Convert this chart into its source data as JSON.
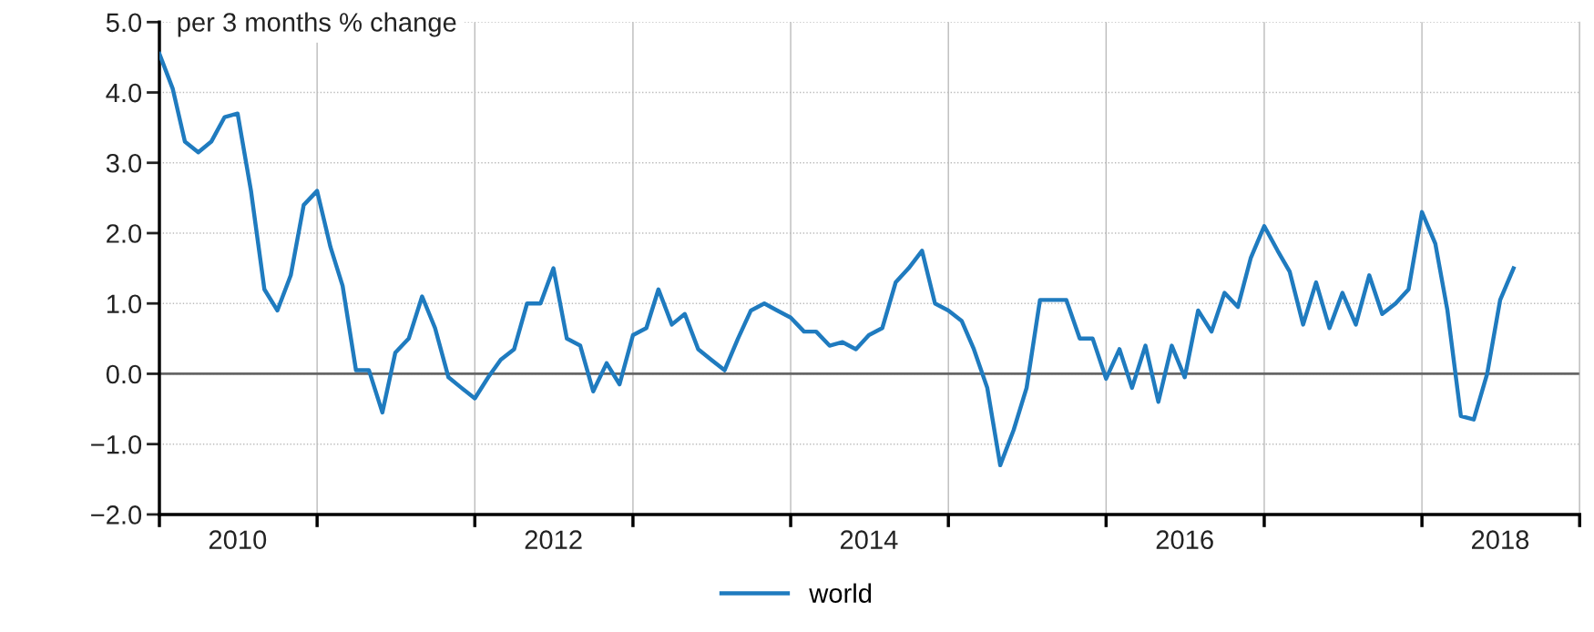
{
  "chart_data": {
    "type": "line",
    "ylabel": "per 3 months % change",
    "x": [
      "2010-01",
      "2010-02",
      "2010-03",
      "2010-04",
      "2010-05",
      "2010-06",
      "2010-07",
      "2010-08",
      "2010-09",
      "2010-10",
      "2010-11",
      "2010-12",
      "2011-01",
      "2011-02",
      "2011-03",
      "2011-04",
      "2011-05",
      "2011-06",
      "2011-07",
      "2011-08",
      "2011-09",
      "2011-10",
      "2011-11",
      "2011-12",
      "2012-01",
      "2012-02",
      "2012-03",
      "2012-04",
      "2012-05",
      "2012-06",
      "2012-07",
      "2012-08",
      "2012-09",
      "2012-10",
      "2012-11",
      "2012-12",
      "2013-01",
      "2013-02",
      "2013-03",
      "2013-04",
      "2013-05",
      "2013-06",
      "2013-07",
      "2013-08",
      "2013-09",
      "2013-10",
      "2013-11",
      "2013-12",
      "2014-01",
      "2014-02",
      "2014-03",
      "2014-04",
      "2014-05",
      "2014-06",
      "2014-07",
      "2014-08",
      "2014-09",
      "2014-10",
      "2014-11",
      "2014-12",
      "2015-01",
      "2015-02",
      "2015-03",
      "2015-04",
      "2015-05",
      "2015-06",
      "2015-07",
      "2015-08",
      "2015-09",
      "2015-10",
      "2015-11",
      "2015-12",
      "2016-01",
      "2016-02",
      "2016-03",
      "2016-04",
      "2016-05",
      "2016-06",
      "2016-07",
      "2016-08",
      "2016-09",
      "2016-10",
      "2016-11",
      "2016-12",
      "2017-01",
      "2017-02",
      "2017-03",
      "2017-04",
      "2017-05",
      "2017-06",
      "2017-07",
      "2017-08",
      "2017-09",
      "2017-10",
      "2017-11",
      "2017-12",
      "2018-01",
      "2018-02",
      "2018-03",
      "2018-04",
      "2018-05",
      "2018-06",
      "2018-07",
      "2018-08"
    ],
    "series": [
      {
        "name": "world",
        "color": "#1f7bbf",
        "values": [
          4.55,
          4.05,
          3.3,
          3.15,
          3.3,
          3.65,
          3.7,
          2.6,
          1.2,
          0.9,
          1.4,
          2.4,
          2.6,
          1.8,
          1.25,
          0.05,
          0.05,
          -0.55,
          0.3,
          0.5,
          1.1,
          0.65,
          -0.05,
          -0.2,
          -0.35,
          -0.05,
          0.2,
          0.35,
          1.0,
          1.0,
          1.5,
          0.5,
          0.4,
          -0.25,
          0.15,
          -0.15,
          0.55,
          0.65,
          1.2,
          0.7,
          0.85,
          0.35,
          0.2,
          0.05,
          0.5,
          0.9,
          1.0,
          0.9,
          0.8,
          0.6,
          0.6,
          0.4,
          0.45,
          0.35,
          0.55,
          0.65,
          1.3,
          1.5,
          1.75,
          1.0,
          0.9,
          0.75,
          0.35,
          -0.2,
          -1.3,
          -0.8,
          -0.2,
          1.05,
          1.05,
          1.05,
          0.5,
          0.5,
          -0.07,
          0.35,
          -0.2,
          0.4,
          -0.4,
          0.4,
          -0.05,
          0.9,
          0.6,
          1.15,
          0.95,
          1.65,
          2.1,
          1.75,
          1.45,
          0.7,
          1.3,
          0.65,
          1.15,
          0.7,
          1.4,
          0.85,
          1.0,
          1.2,
          2.3,
          1.85,
          0.9,
          -0.6,
          -0.65,
          0.0,
          1.05,
          1.5
        ]
      }
    ],
    "xlim": [
      "2010-01",
      "2019-01"
    ],
    "xticks": [
      {
        "value": "2010-01",
        "label": null
      },
      {
        "value": "2011-01",
        "label": null
      },
      {
        "value": "2012-01",
        "label": null
      },
      {
        "value": "2013-01",
        "label": null
      },
      {
        "value": "2014-01",
        "label": null
      },
      {
        "value": "2015-01",
        "label": null
      },
      {
        "value": "2016-01",
        "label": null
      },
      {
        "value": "2017-01",
        "label": null
      },
      {
        "value": "2018-01",
        "label": null
      },
      {
        "value": "2019-01",
        "label": null
      },
      {
        "value": "2010-07",
        "label": "2010"
      },
      {
        "value": "2012-07",
        "label": "2012"
      },
      {
        "value": "2014-07",
        "label": "2014"
      },
      {
        "value": "2016-07",
        "label": "2016"
      },
      {
        "value": "2018-07",
        "label": "2018"
      }
    ],
    "ylim": [
      -2,
      5
    ],
    "yticks": [
      {
        "value": -2,
        "label": "−2.0"
      },
      {
        "value": -1,
        "label": "−1.0"
      },
      {
        "value": 0,
        "label": "0.0"
      },
      {
        "value": 1,
        "label": "1.0"
      },
      {
        "value": 2,
        "label": "2.0"
      },
      {
        "value": 3,
        "label": "3.0"
      },
      {
        "value": 4,
        "label": "4.0"
      },
      {
        "value": 5,
        "label": "5.0"
      }
    ],
    "ref_lines": [
      {
        "axis": "y",
        "value": 0,
        "color": "#666666"
      }
    ],
    "grid": true,
    "legend": "bottom",
    "marker": "none",
    "line_style": "solid"
  }
}
